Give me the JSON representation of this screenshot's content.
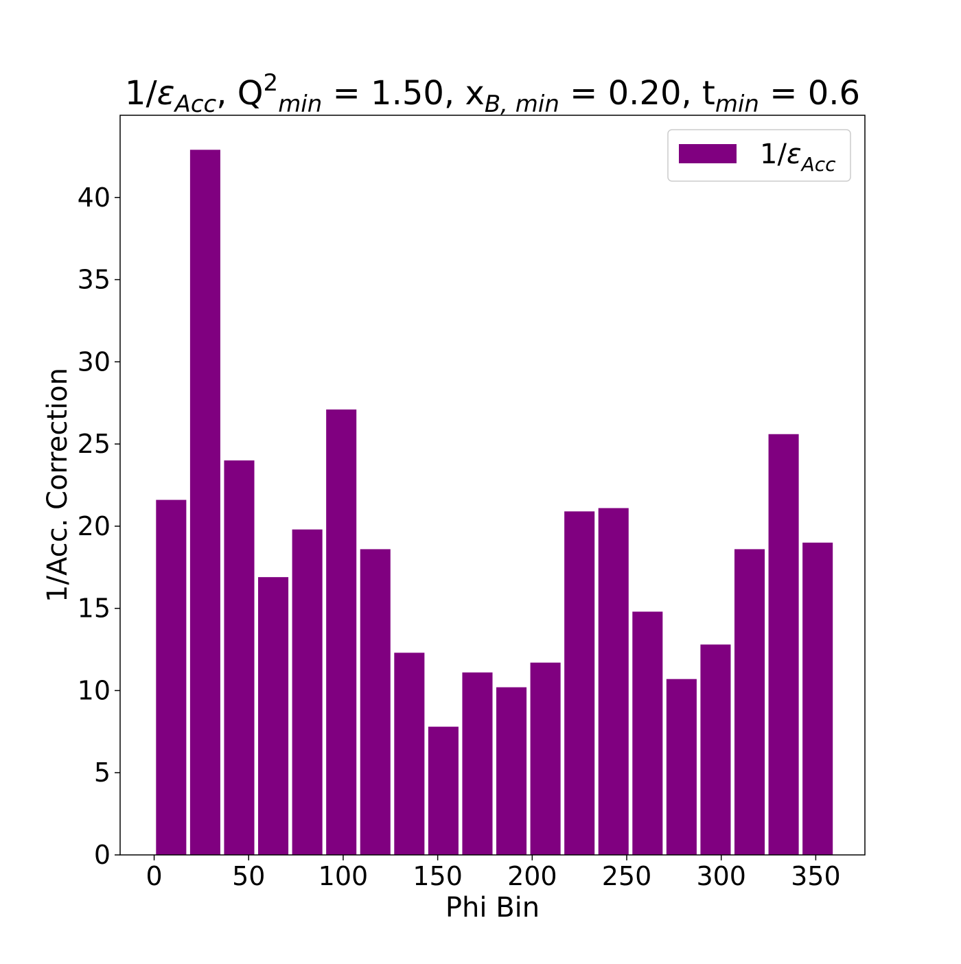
{
  "chart_data": {
    "type": "bar",
    "title": {
      "segments": [
        {
          "text": "1/",
          "style": "normal"
        },
        {
          "text": "ε",
          "style": "italic"
        },
        {
          "text": "Acc",
          "style": "sub-italic"
        },
        {
          "text": ", Q",
          "style": "normal"
        },
        {
          "text": "2",
          "style": "sup"
        },
        {
          "text": "min",
          "style": "sub-italic"
        },
        {
          "text": " = 1.50, x",
          "style": "normal"
        },
        {
          "text": "B, min",
          "style": "sub-italic"
        },
        {
          "text": " = 0.20, t",
          "style": "normal"
        },
        {
          "text": "min",
          "style": "sub-italic"
        },
        {
          "text": " = 0.6",
          "style": "normal"
        }
      ]
    },
    "xlabel": "Phi Bin",
    "ylabel": "1/Acc. Correction",
    "xlim": [
      -18,
      376
    ],
    "ylim": [
      0,
      45
    ],
    "x_ticks": [
      0,
      50,
      100,
      150,
      200,
      250,
      300,
      350
    ],
    "y_ticks": [
      0,
      5,
      10,
      15,
      20,
      25,
      30,
      35,
      40
    ],
    "bar_width": 16,
    "x": [
      9,
      27,
      45,
      63,
      81,
      99,
      117,
      135,
      153,
      171,
      189,
      207,
      225,
      243,
      261,
      279,
      297,
      315,
      333,
      351
    ],
    "series": [
      {
        "name": "1/ε_Acc",
        "color": "#800080",
        "values": [
          21.6,
          42.9,
          24.0,
          16.9,
          19.8,
          27.1,
          18.6,
          12.3,
          7.8,
          11.1,
          10.2,
          11.7,
          20.9,
          21.1,
          14.8,
          10.7,
          12.8,
          18.6,
          25.6,
          19.0
        ]
      }
    ],
    "legend": {
      "position": "top-right",
      "segments": [
        {
          "text": "1/",
          "style": "normal"
        },
        {
          "text": "ε",
          "style": "italic"
        },
        {
          "text": "Acc",
          "style": "sub-italic"
        }
      ]
    },
    "grid": false
  }
}
